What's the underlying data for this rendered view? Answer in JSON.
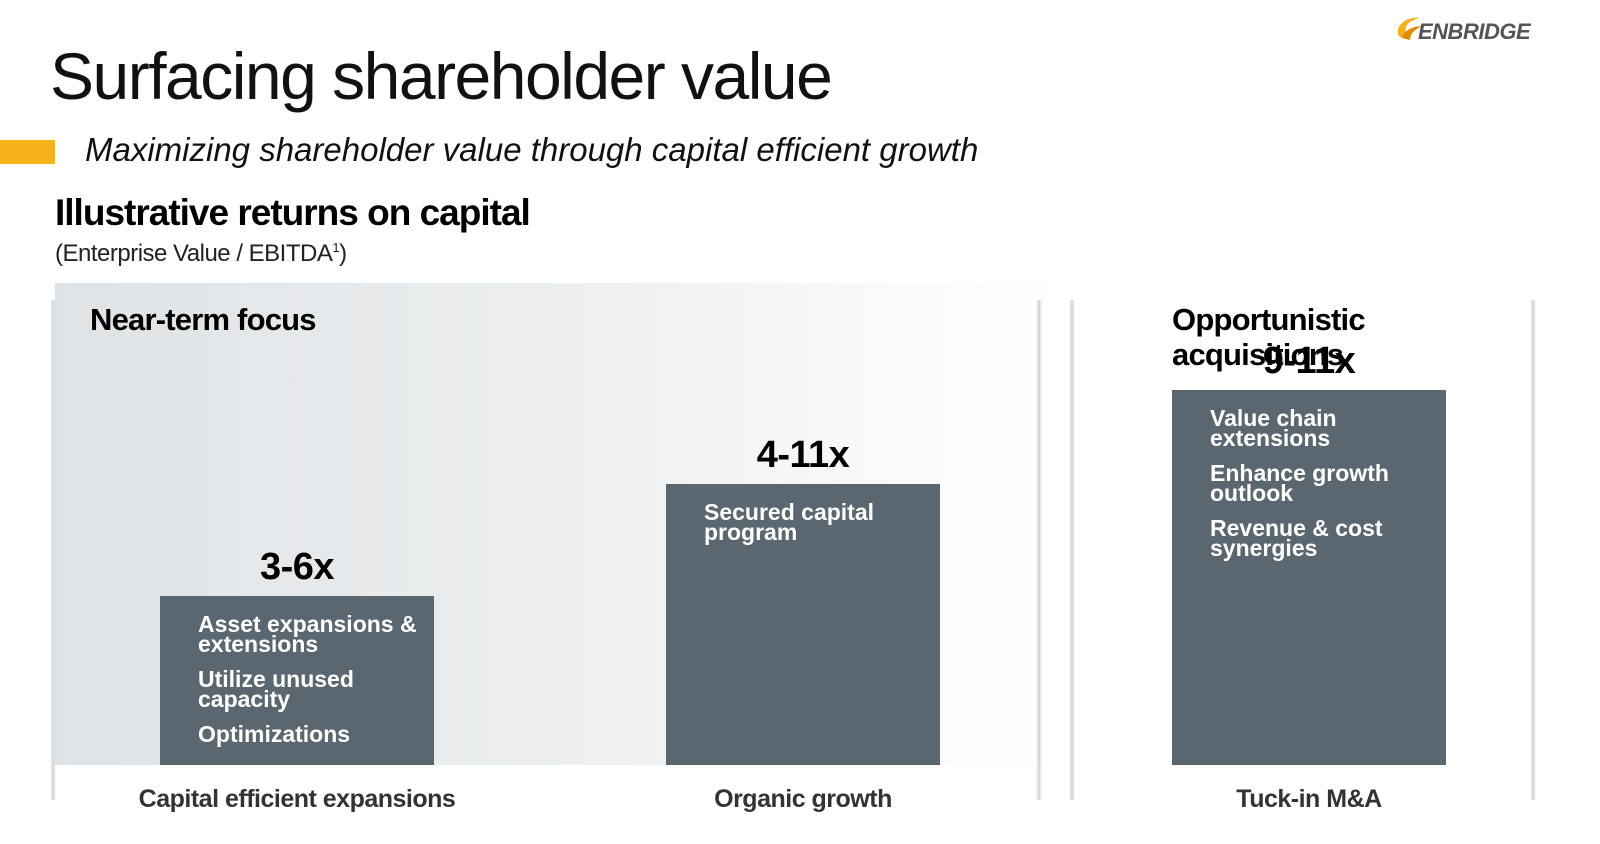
{
  "header": {
    "title": "Surfacing shareholder value",
    "subtitle": "Maximizing shareholder value through capital efficient growth",
    "logo_text": "ENBRIDGE",
    "accent_color": "#f5b21b"
  },
  "section": {
    "title": "Illustrative returns on capital",
    "subtitle_main": "(Enterprise Value / EBITDA",
    "subtitle_sup": "1",
    "subtitle_end": ")"
  },
  "panels": {
    "left_heading": "Near-term focus",
    "right_heading_line1": "Opportunistic",
    "right_heading_line2": "acquisitions"
  },
  "chart_data": {
    "type": "bar",
    "title": "Illustrative returns on capital",
    "ylabel": "(Enterprise Value / EBITDA1)",
    "categories": [
      "Capital efficient expansions",
      "Organic growth",
      "Tuck-in M&A"
    ],
    "series": [
      {
        "values": [
          4.5,
          7.5,
          10
        ],
        "ranges": [
          "3-6x",
          "4-11x",
          "9-11x"
        ]
      }
    ],
    "ylim": [
      0,
      12
    ],
    "bar_color": "#5a6770",
    "bullets": [
      [
        "Asset expansions & extensions",
        "Utilize unused capacity",
        "Optimizations"
      ],
      [
        "Secured capital program"
      ],
      [
        "Value chain extensions",
        "Enhance growth outlook",
        "Revenue & cost synergies"
      ]
    ]
  }
}
